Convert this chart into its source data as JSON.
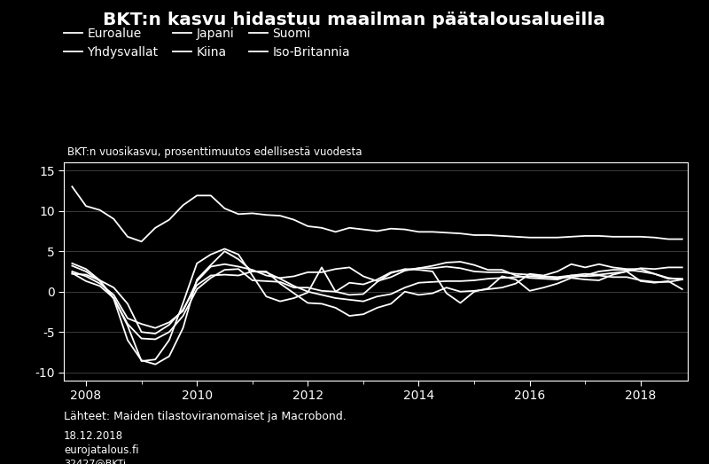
{
  "title": "BKT:n kasvu hidastuu maailman päätalousalueilla",
  "subtitle": "BKT:n vuosikasvu, prosenttimuutos edellisestä vuodesta",
  "source_text": "Lähteet: Maiden tilastoviranomaiset ja Macrobond.",
  "date_text": "18.12.2018",
  "website_text": "eurojatalous.fi",
  "code_text": "32427@BKTi",
  "background_color": "#000000",
  "text_color": "#ffffff",
  "line_color": "#ffffff",
  "grid_color": "#444444",
  "ylim": [
    -11,
    16
  ],
  "yticks": [
    -10,
    -5,
    0,
    5,
    10,
    15
  ],
  "xlim": [
    2007.6,
    2018.85
  ],
  "xticks": [
    2008,
    2010,
    2012,
    2014,
    2016,
    2018
  ],
  "legend_row1": [
    "Euroalue",
    "Yhdysvallat",
    "Japani"
  ],
  "legend_row2": [
    "Kiina",
    "Suomi",
    "Iso-Britannia"
  ],
  "series": {
    "Kiina": {
      "x": [
        2007.75,
        2008.0,
        2008.25,
        2008.5,
        2008.75,
        2009.0,
        2009.25,
        2009.5,
        2009.75,
        2010.0,
        2010.25,
        2010.5,
        2010.75,
        2011.0,
        2011.25,
        2011.5,
        2011.75,
        2012.0,
        2012.25,
        2012.5,
        2012.75,
        2013.0,
        2013.25,
        2013.5,
        2013.75,
        2014.0,
        2014.25,
        2014.5,
        2014.75,
        2015.0,
        2015.25,
        2015.5,
        2015.75,
        2016.0,
        2016.25,
        2016.5,
        2016.75,
        2017.0,
        2017.25,
        2017.5,
        2017.75,
        2018.0,
        2018.25,
        2018.5,
        2018.75
      ],
      "y": [
        13.0,
        10.6,
        10.1,
        9.0,
        6.8,
        6.2,
        7.9,
        8.9,
        10.7,
        11.9,
        11.9,
        10.3,
        9.6,
        9.7,
        9.5,
        9.4,
        8.9,
        8.1,
        7.9,
        7.4,
        7.9,
        7.7,
        7.5,
        7.8,
        7.7,
        7.4,
        7.4,
        7.3,
        7.2,
        7.0,
        7.0,
        6.9,
        6.8,
        6.7,
        6.7,
        6.7,
        6.8,
        6.9,
        6.9,
        6.8,
        6.8,
        6.8,
        6.7,
        6.5,
        6.5
      ]
    },
    "Euroalue": {
      "x": [
        2007.75,
        2008.0,
        2008.25,
        2008.5,
        2008.75,
        2009.0,
        2009.25,
        2009.5,
        2009.75,
        2010.0,
        2010.25,
        2010.5,
        2010.75,
        2011.0,
        2011.25,
        2011.5,
        2011.75,
        2012.0,
        2012.25,
        2012.5,
        2012.75,
        2013.0,
        2013.25,
        2013.5,
        2013.75,
        2014.0,
        2014.25,
        2014.5,
        2014.75,
        2015.0,
        2015.25,
        2015.5,
        2015.75,
        2016.0,
        2016.25,
        2016.5,
        2016.75,
        2017.0,
        2017.25,
        2017.5,
        2017.75,
        2018.0,
        2018.25,
        2018.5,
        2018.75
      ],
      "y": [
        2.2,
        2.1,
        1.4,
        0.5,
        -1.5,
        -5.0,
        -5.2,
        -4.1,
        -2.2,
        0.8,
        2.0,
        2.1,
        2.0,
        2.5,
        2.4,
        1.6,
        0.7,
        0.0,
        -0.4,
        -0.8,
        -1.0,
        -1.2,
        -0.6,
        -0.3,
        0.5,
        1.1,
        1.2,
        1.3,
        1.3,
        1.4,
        1.6,
        1.7,
        1.8,
        1.9,
        1.8,
        1.7,
        1.8,
        2.0,
        2.5,
        2.7,
        2.7,
        2.5,
        2.2,
        1.6,
        1.6
      ]
    },
    "Yhdysvallat": {
      "x": [
        2007.75,
        2008.0,
        2008.25,
        2008.5,
        2008.75,
        2009.0,
        2009.25,
        2009.5,
        2009.75,
        2010.0,
        2010.25,
        2010.5,
        2010.75,
        2011.0,
        2011.25,
        2011.5,
        2011.75,
        2012.0,
        2012.25,
        2012.5,
        2012.75,
        2013.0,
        2013.25,
        2013.5,
        2013.75,
        2014.0,
        2014.25,
        2014.5,
        2014.75,
        2015.0,
        2015.25,
        2015.5,
        2015.75,
        2016.0,
        2016.25,
        2016.5,
        2016.75,
        2017.0,
        2017.25,
        2017.5,
        2017.75,
        2018.0,
        2018.25,
        2018.5,
        2018.75
      ],
      "y": [
        2.5,
        1.9,
        1.0,
        -0.4,
        -3.3,
        -4.0,
        -4.5,
        -3.8,
        -2.4,
        1.3,
        3.1,
        3.4,
        3.1,
        2.7,
        2.0,
        1.7,
        1.9,
        2.4,
        2.4,
        2.8,
        3.0,
        1.9,
        1.3,
        1.8,
        2.6,
        2.9,
        3.2,
        3.6,
        3.7,
        3.3,
        2.7,
        2.7,
        2.0,
        1.7,
        1.6,
        1.5,
        2.0,
        2.2,
        2.1,
        2.3,
        2.5,
        2.9,
        2.8,
        3.0,
        3.0
      ]
    },
    "Japani": {
      "x": [
        2007.75,
        2008.0,
        2008.25,
        2008.5,
        2008.75,
        2009.0,
        2009.25,
        2009.5,
        2009.75,
        2010.0,
        2010.25,
        2010.5,
        2010.75,
        2011.0,
        2011.25,
        2011.5,
        2011.75,
        2012.0,
        2012.25,
        2012.5,
        2012.75,
        2013.0,
        2013.25,
        2013.5,
        2013.75,
        2014.0,
        2014.25,
        2014.5,
        2014.75,
        2015.0,
        2015.25,
        2015.5,
        2015.75,
        2016.0,
        2016.25,
        2016.5,
        2016.75,
        2017.0,
        2017.25,
        2017.5,
        2017.75,
        2018.0,
        2018.25,
        2018.5,
        2018.75
      ],
      "y": [
        2.3,
        1.3,
        0.7,
        -0.8,
        -4.2,
        -8.6,
        -8.4,
        -6.0,
        -1.4,
        3.5,
        4.6,
        5.3,
        4.6,
        2.0,
        -0.6,
        -1.2,
        -0.8,
        -0.1,
        3.0,
        0.0,
        -0.4,
        -0.3,
        1.2,
        2.3,
        2.8,
        2.7,
        2.5,
        -0.2,
        -1.4,
        0.0,
        0.4,
        1.9,
        1.5,
        0.1,
        0.5,
        1.0,
        1.7,
        1.5,
        1.4,
        2.1,
        2.5,
        1.3,
        1.1,
        1.3,
        0.3
      ]
    },
    "Suomi": {
      "x": [
        2007.75,
        2008.0,
        2008.25,
        2008.5,
        2008.75,
        2009.0,
        2009.25,
        2009.5,
        2009.75,
        2010.0,
        2010.25,
        2010.5,
        2010.75,
        2011.0,
        2011.25,
        2011.5,
        2011.75,
        2012.0,
        2012.25,
        2012.5,
        2012.75,
        2013.0,
        2013.25,
        2013.5,
        2013.75,
        2014.0,
        2014.25,
        2014.5,
        2014.75,
        2015.0,
        2015.25,
        2015.5,
        2015.75,
        2016.0,
        2016.25,
        2016.5,
        2016.75,
        2017.0,
        2017.25,
        2017.5,
        2017.75,
        2018.0,
        2018.25,
        2018.5,
        2018.75
      ],
      "y": [
        3.5,
        2.8,
        1.4,
        -0.9,
        -6.0,
        -8.5,
        -9.0,
        -8.0,
        -4.5,
        1.5,
        3.3,
        5.0,
        4.0,
        2.5,
        2.5,
        1.0,
        -0.2,
        -1.4,
        -1.5,
        -2.0,
        -3.0,
        -2.8,
        -2.0,
        -1.5,
        0.0,
        -0.4,
        -0.2,
        0.5,
        0.0,
        0.1,
        0.3,
        0.5,
        1.0,
        2.2,
        2.0,
        2.5,
        3.4,
        3.0,
        3.4,
        3.0,
        2.8,
        2.8,
        2.2,
        1.7,
        1.5
      ]
    },
    "Iso-Britannia": {
      "x": [
        2007.75,
        2008.0,
        2008.25,
        2008.5,
        2008.75,
        2009.0,
        2009.25,
        2009.5,
        2009.75,
        2010.0,
        2010.25,
        2010.5,
        2010.75,
        2011.0,
        2011.25,
        2011.5,
        2011.75,
        2012.0,
        2012.25,
        2012.5,
        2012.75,
        2013.0,
        2013.25,
        2013.5,
        2013.75,
        2014.0,
        2014.25,
        2014.5,
        2014.75,
        2015.0,
        2015.25,
        2015.5,
        2015.75,
        2016.0,
        2016.25,
        2016.5,
        2016.75,
        2017.0,
        2017.25,
        2017.5,
        2017.75,
        2018.0,
        2018.25,
        2018.5,
        2018.75
      ],
      "y": [
        3.2,
        2.5,
        1.3,
        -0.8,
        -4.0,
        -5.8,
        -5.9,
        -5.0,
        -3.0,
        0.3,
        1.7,
        2.7,
        2.8,
        1.4,
        1.3,
        1.2,
        0.5,
        0.5,
        0.1,
        0.0,
        1.1,
        0.9,
        1.5,
        2.4,
        2.7,
        2.9,
        2.9,
        3.1,
        2.9,
        2.5,
        2.4,
        2.4,
        2.2,
        2.1,
        1.9,
        1.8,
        2.0,
        1.9,
        2.0,
        1.8,
        1.8,
        1.4,
        1.2,
        1.2,
        1.5
      ]
    }
  }
}
